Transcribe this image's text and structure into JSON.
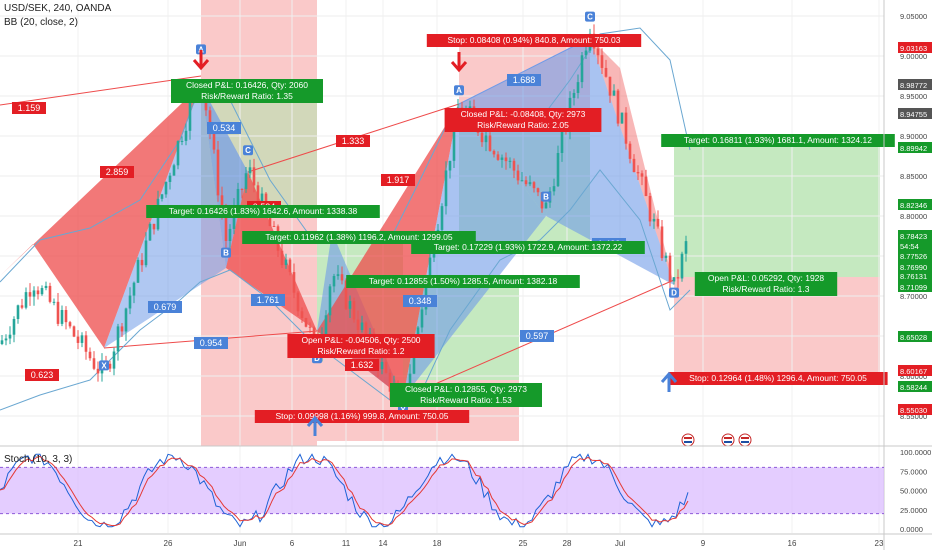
{
  "header": {
    "symbol": "USD/SEK, 240, OANDA",
    "indicator_bb": "BB (20, close, 2)",
    "indicator_stoch": "Stoch (10, 3, 3)"
  },
  "colors": {
    "bull": "#26a69a",
    "bear": "#ef5350",
    "harmonic_blue": "#6f9be8",
    "harmonic_red": "#ee4b4b",
    "profit_zone": "#b7e3b0",
    "loss_zone": "#f8b7b7",
    "stoch_band": "#d9b8ff",
    "label_red": "#e31e24",
    "label_green": "#159a2a",
    "label_blue": "#4a82d8"
  },
  "chart_data": {
    "type": "candlestick",
    "title": "USD/SEK, 240, OANDA",
    "x_ticks": [
      "21",
      "26",
      "Jun",
      "6",
      "11",
      "14",
      "18",
      "25",
      "28",
      "Jul",
      "9",
      "16",
      "23"
    ],
    "price_axis": {
      "ylim": [
        8.52,
        9.07
      ],
      "ticks": [
        "9.05000",
        "9.00000",
        "8.95000",
        "8.90000",
        "8.85000",
        "8.80000",
        "8.75000",
        "8.70000",
        "8.65000",
        "8.60000",
        "8.55000"
      ],
      "marked_levels": [
        {
          "value": "9.03163",
          "color": "#e31e24"
        },
        {
          "value": "8.98772",
          "color": "#555555"
        },
        {
          "value": "8.94755",
          "color": "#555555"
        },
        {
          "value": "8.89942",
          "color": "#159a2a"
        },
        {
          "value": "8.82346",
          "color": "#159a2a"
        },
        {
          "value": "8.78423",
          "color": "#159a2a"
        },
        {
          "value": "54:54",
          "color": "#159a2a"
        },
        {
          "value": "8.77526",
          "color": "#159a2a"
        },
        {
          "value": "8.76990",
          "color": "#159a2a"
        },
        {
          "value": "8.76131",
          "color": "#159a2a"
        },
        {
          "value": "8.71099",
          "color": "#159a2a"
        },
        {
          "value": "8.65028",
          "color": "#159a2a"
        },
        {
          "value": "8.60167",
          "color": "#e31e24"
        },
        {
          "value": "8.58244",
          "color": "#159a2a"
        },
        {
          "value": "8.55030",
          "color": "#e31e24"
        }
      ]
    },
    "stoch_axis": {
      "ylim": [
        0,
        100
      ],
      "ticks": [
        "100.0000",
        "75.0000",
        "50.0000",
        "25.0000",
        "0.0000"
      ],
      "band": [
        20,
        80
      ]
    },
    "pivots": [
      {
        "label": "X",
        "price": 8.627
      },
      {
        "label": "A",
        "price": 8.997
      },
      {
        "label": "B",
        "price": 8.768
      },
      {
        "label": "C",
        "price": 8.871
      },
      {
        "label": "D",
        "price": 8.636
      },
      {
        "label": "X",
        "price": 8.571
      },
      {
        "label": "A",
        "price": 8.946
      },
      {
        "label": "B",
        "price": 8.813
      },
      {
        "label": "C",
        "price": 9.038
      },
      {
        "label": "D",
        "price": 8.718
      }
    ],
    "ratio_labels": [
      "1.159",
      "2.859",
      "0.623",
      "0.534",
      "0.679",
      "0.534",
      "1.761",
      "0.954",
      "1.333",
      "1.917",
      "1.632",
      "0.348",
      "1.688",
      "0.597",
      "1.423"
    ],
    "trade_labels": [
      {
        "text": "Closed P&L: 0.16426, Qty: 2060",
        "line2": "Risk/Reward Ratio: 1.35",
        "color": "#159a2a"
      },
      {
        "text": "Target: 0.16426 (1.83%) 1642.6, Amount: 1338.38",
        "color": "#159a2a"
      },
      {
        "text": "Target: 0.11962 (1.38%) 1196.2, Amount: 1299.05",
        "color": "#159a2a"
      },
      {
        "text": "Target: 0.12855 (1.50%) 1285.5, Amount: 1382.18",
        "color": "#159a2a"
      },
      {
        "text": "Open P&L: -0.04506, Qty: 2500",
        "line2": "Risk/Reward Ratio: 1.2",
        "color": "#e31e24"
      },
      {
        "text": "Closed P&L: 0.12855, Qty: 2973",
        "line2": "Risk/Reward Ratio: 1.53",
        "color": "#159a2a"
      },
      {
        "text": "Stop: 0.09998 (1.16%) 999.8, Amount: 750.05",
        "color": "#e31e24"
      },
      {
        "text": "Stop: 0.08408 (0.94%) 840.8, Amount: 750.03",
        "color": "#e31e24"
      },
      {
        "text": "Closed P&L: -0.08408, Qty: 2973",
        "line2": "Risk/Reward Ratio: 2.05",
        "color": "#e31e24"
      },
      {
        "text": "Target: 0.17229 (1.93%) 1722.9, Amount: 1372.22",
        "color": "#159a2a"
      },
      {
        "text": "Target: 0.16811 (1.93%) 1681.1, Amount: 1324.12",
        "color": "#159a2a"
      },
      {
        "text": "Open P&L: 0.05292, Qty: 1928",
        "line2": "Risk/Reward Ratio: 1.3",
        "color": "#159a2a"
      },
      {
        "text": "Stop: 0.12964 (1.48%) 1296.4, Amount: 750.05",
        "color": "#e31e24"
      }
    ]
  }
}
